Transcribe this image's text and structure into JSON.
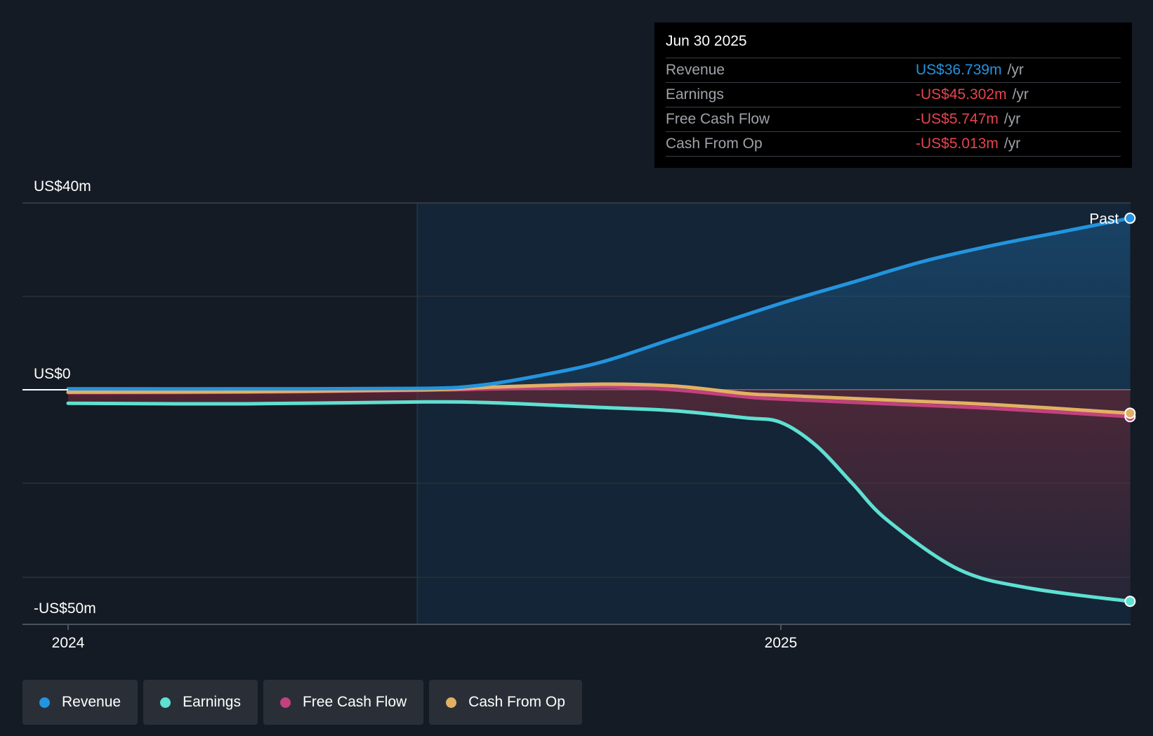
{
  "chart_data": {
    "type": "area",
    "y_ticks": [
      {
        "label": "US$40m",
        "value": 40
      },
      {
        "label": "US$0",
        "value": 0
      },
      {
        "label": "-US$50m",
        "value": -50
      }
    ],
    "x_ticks": [
      {
        "label": "2024",
        "value": 2024.0
      },
      {
        "label": "2025",
        "value": 2025.0
      }
    ],
    "ylim": [
      -50,
      40
    ],
    "xlim": [
      2023.935,
      2025.49
    ],
    "past_region_start": 2024.49,
    "past_label": "Past",
    "series": [
      {
        "name": "Revenue",
        "color": "#2394df",
        "x": [
          2024.0,
          2024.25,
          2024.5,
          2024.58,
          2024.66,
          2024.75,
          2024.85,
          2025.0,
          2025.1,
          2025.2,
          2025.3,
          2025.4,
          2025.49
        ],
        "values": [
          0.2,
          0.2,
          0.3,
          1.0,
          3.0,
          6.0,
          11.0,
          18.5,
          23.0,
          27.5,
          31.0,
          34.0,
          36.739
        ]
      },
      {
        "name": "Earnings",
        "color": "#5ee0d2",
        "x": [
          2024.0,
          2024.25,
          2024.5,
          2024.6,
          2024.75,
          2024.85,
          2024.95,
          2025.0,
          2025.05,
          2025.1,
          2025.15,
          2025.25,
          2025.35,
          2025.49
        ],
        "values": [
          -2.9,
          -3.0,
          -2.6,
          -2.8,
          -3.8,
          -4.5,
          -6.0,
          -7.0,
          -12.0,
          -20.0,
          -28.0,
          -38.5,
          -42.5,
          -45.302
        ]
      },
      {
        "name": "Free Cash Flow",
        "color": "#c2417e",
        "x": [
          2024.0,
          2024.25,
          2024.5,
          2024.6,
          2024.75,
          2024.85,
          2024.95,
          2025.0,
          2025.15,
          2025.3,
          2025.49
        ],
        "values": [
          -0.6,
          -0.5,
          -0.1,
          0.2,
          0.6,
          0.0,
          -1.5,
          -2.0,
          -3.0,
          -4.0,
          -5.747
        ]
      },
      {
        "name": "Cash From Op",
        "color": "#e3b063",
        "x": [
          2024.0,
          2024.25,
          2024.5,
          2024.6,
          2024.75,
          2024.85,
          2024.95,
          2025.0,
          2025.15,
          2025.3,
          2025.49
        ],
        "values": [
          -0.5,
          -0.4,
          0.0,
          0.6,
          1.2,
          0.8,
          -0.8,
          -1.2,
          -2.2,
          -3.2,
          -5.013
        ]
      }
    ]
  },
  "tooltip": {
    "date": "Jun 30 2025",
    "rows": [
      {
        "label": "Revenue",
        "value": "US$36.739m",
        "unit": "/yr",
        "color": "#2394df"
      },
      {
        "label": "Earnings",
        "value": "-US$45.302m",
        "unit": "/yr",
        "color": "#e5444e"
      },
      {
        "label": "Free Cash Flow",
        "value": "-US$5.747m",
        "unit": "/yr",
        "color": "#e5444e"
      },
      {
        "label": "Cash From Op",
        "value": "-US$5.013m",
        "unit": "/yr",
        "color": "#e5444e"
      }
    ]
  },
  "legend": [
    {
      "label": "Revenue",
      "color": "#2394df"
    },
    {
      "label": "Earnings",
      "color": "#5ee0d2"
    },
    {
      "label": "Free Cash Flow",
      "color": "#c2417e"
    },
    {
      "label": "Cash From Op",
      "color": "#e3b063"
    }
  ]
}
